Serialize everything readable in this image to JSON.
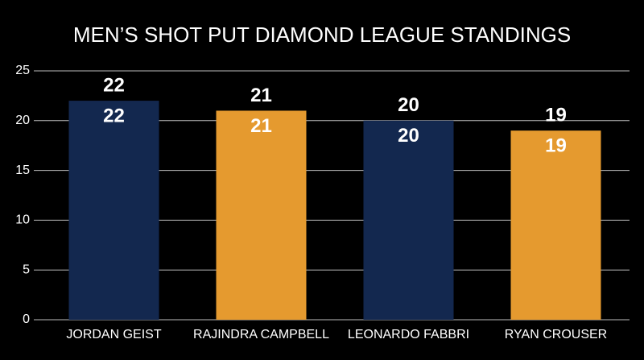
{
  "chart_data": {
    "type": "bar",
    "title": "MEN’S SHOT PUT DIAMOND LEAGUE STANDINGS",
    "categories": [
      "JORDAN GEIST",
      "RAJINDRA CAMPBELL",
      "LEONARDO FABBRI",
      "RYAN CROUSER"
    ],
    "values": [
      22,
      21,
      20,
      19
    ],
    "colors": [
      "#13284f",
      "#e59a2f",
      "#13284f",
      "#e59a2f"
    ],
    "ylim": [
      0,
      25
    ],
    "yticks": [
      0,
      5,
      10,
      15,
      20,
      25
    ],
    "grid": true
  }
}
